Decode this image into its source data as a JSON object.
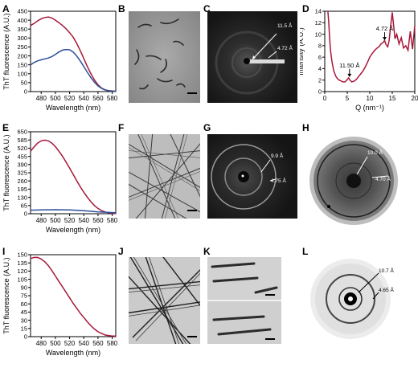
{
  "panels": {
    "A": "A",
    "B": "B",
    "C": "C",
    "D": "D",
    "E": "E",
    "F": "F",
    "G": "G",
    "H": "H",
    "I": "I",
    "J": "J",
    "K": "K",
    "L": "L"
  },
  "chart_data": [
    {
      "panel": "A",
      "type": "line",
      "xlabel": "Wavelength (nm)",
      "ylabel": "ThT fluorescence (A.U.)",
      "xlim": [
        465,
        585
      ],
      "ylim": [
        0,
        450
      ],
      "xticks": [
        480,
        500,
        520,
        540,
        560,
        580
      ],
      "yticks": [
        0,
        50,
        100,
        150,
        200,
        250,
        300,
        350,
        400,
        450
      ],
      "series": [
        {
          "color": "#a8173a",
          "x": [
            465,
            470,
            475,
            480,
            485,
            490,
            495,
            500,
            505,
            510,
            515,
            520,
            525,
            530,
            535,
            540,
            545,
            550,
            555,
            560,
            565,
            570,
            575,
            580,
            585
          ],
          "y": [
            370,
            382,
            396,
            408,
            415,
            418,
            412,
            400,
            386,
            370,
            352,
            330,
            305,
            270,
            230,
            185,
            140,
            100,
            65,
            38,
            20,
            10,
            5,
            3,
            2
          ]
        },
        {
          "color": "#2c4f9a",
          "x": [
            465,
            470,
            475,
            480,
            485,
            490,
            495,
            500,
            505,
            510,
            515,
            520,
            525,
            530,
            535,
            540,
            545,
            550,
            555,
            560,
            565,
            570,
            575,
            580,
            585
          ],
          "y": [
            150,
            163,
            172,
            178,
            183,
            188,
            196,
            208,
            222,
            232,
            236,
            234,
            222,
            200,
            172,
            140,
            108,
            78,
            52,
            32,
            18,
            9,
            5,
            3,
            2
          ]
        }
      ]
    },
    {
      "panel": "D",
      "type": "line",
      "xlabel": "Q (nm⁻¹)",
      "ylabel": "Intensity (A.U.)",
      "xlim": [
        0,
        20
      ],
      "ylim": [
        0,
        14
      ],
      "xticks": [
        0,
        5,
        10,
        15,
        20
      ],
      "yticks": [
        0,
        2,
        4,
        6,
        8,
        10,
        12,
        14
      ],
      "annotations": [
        {
          "text": "11.50 Å",
          "x": 5.5,
          "y": 2.4
        },
        {
          "text": "4.72 Å",
          "x": 13.3,
          "y": 8.8
        }
      ],
      "series": [
        {
          "color": "#a8173a",
          "x": [
            0.7,
            0.9,
            1.1,
            1.3,
            1.6,
            2.0,
            2.5,
            3.0,
            3.5,
            4.0,
            4.5,
            5.0,
            5.3,
            5.6,
            6.0,
            6.5,
            7.0,
            7.5,
            8.0,
            8.5,
            9.0,
            9.5,
            10.0,
            10.5,
            11.0,
            11.5,
            12.0,
            12.5,
            13.0,
            13.3,
            13.6,
            14.0,
            14.3,
            14.6,
            15.0,
            15.3,
            15.6,
            16.0,
            16.5,
            17.0,
            17.5,
            18.0,
            18.5,
            19.0,
            19.5,
            20.0
          ],
          "y": [
            14,
            12,
            9.0,
            7.0,
            5.2,
            3.6,
            2.6,
            2.1,
            1.9,
            1.7,
            1.7,
            2.1,
            2.4,
            2.0,
            1.7,
            1.8,
            2.1,
            2.6,
            3.1,
            3.6,
            4.3,
            5.1,
            6.0,
            6.6,
            7.1,
            7.5,
            7.8,
            8.3,
            8.6,
            8.9,
            8.2,
            7.8,
            8.9,
            11.2,
            13.8,
            11.5,
            9.2,
            10.0,
            8.3,
            9.4,
            7.6,
            8.0,
            7.2,
            10.5,
            7.4,
            11.5
          ]
        }
      ]
    },
    {
      "panel": "E",
      "type": "line",
      "xlabel": "Wavelength (nm)",
      "ylabel": "ThT fluorescence (A.U.)",
      "xlim": [
        465,
        585
      ],
      "ylim": [
        0,
        650
      ],
      "xticks": [
        480,
        500,
        520,
        540,
        560,
        580
      ],
      "yticks": [
        0,
        65,
        130,
        195,
        260,
        325,
        390,
        455,
        520,
        585,
        650
      ],
      "series": [
        {
          "color": "#a8173a",
          "x": [
            465,
            470,
            475,
            480,
            485,
            490,
            495,
            500,
            505,
            510,
            515,
            520,
            525,
            530,
            535,
            540,
            545,
            550,
            555,
            560,
            565,
            570,
            575,
            580,
            585
          ],
          "y": [
            495,
            530,
            560,
            578,
            584,
            578,
            560,
            532,
            496,
            455,
            410,
            362,
            312,
            262,
            214,
            170,
            130,
            95,
            65,
            42,
            25,
            14,
            8,
            4,
            2
          ]
        },
        {
          "color": "#2c4f9a",
          "x": [
            465,
            480,
            500,
            520,
            540,
            560,
            585
          ],
          "y": [
            28,
            30,
            32,
            30,
            24,
            14,
            8
          ]
        }
      ]
    },
    {
      "panel": "I",
      "type": "line",
      "xlabel": "Wavelength (nm)",
      "ylabel": "ThT fluorescence (A.U.)",
      "xlim": [
        465,
        585
      ],
      "ylim": [
        0,
        150
      ],
      "xticks": [
        480,
        500,
        520,
        540,
        560,
        580
      ],
      "yticks": [
        0,
        15,
        30,
        45,
        60,
        75,
        90,
        105,
        120,
        135,
        150
      ],
      "series": [
        {
          "color": "#a8173a",
          "x": [
            465,
            470,
            475,
            480,
            485,
            490,
            495,
            500,
            505,
            510,
            515,
            520,
            525,
            530,
            535,
            540,
            545,
            550,
            555,
            560,
            565,
            570,
            575,
            580,
            585
          ],
          "y": [
            143,
            145,
            145,
            142,
            137,
            130,
            121,
            111,
            101,
            91,
            81,
            71,
            61,
            52,
            43,
            35,
            27,
            20,
            14,
            9,
            6,
            3,
            2,
            1,
            1
          ]
        }
      ]
    }
  ],
  "diffraction_labels": {
    "C": [
      "11.5 Å",
      "4.72 Å"
    ],
    "G": [
      "9.9 Å",
      "4.75 Å"
    ],
    "H": [
      "10.0 Å",
      "4.70 Å"
    ],
    "L": [
      "10.7 Å",
      "4.65 Å"
    ]
  }
}
